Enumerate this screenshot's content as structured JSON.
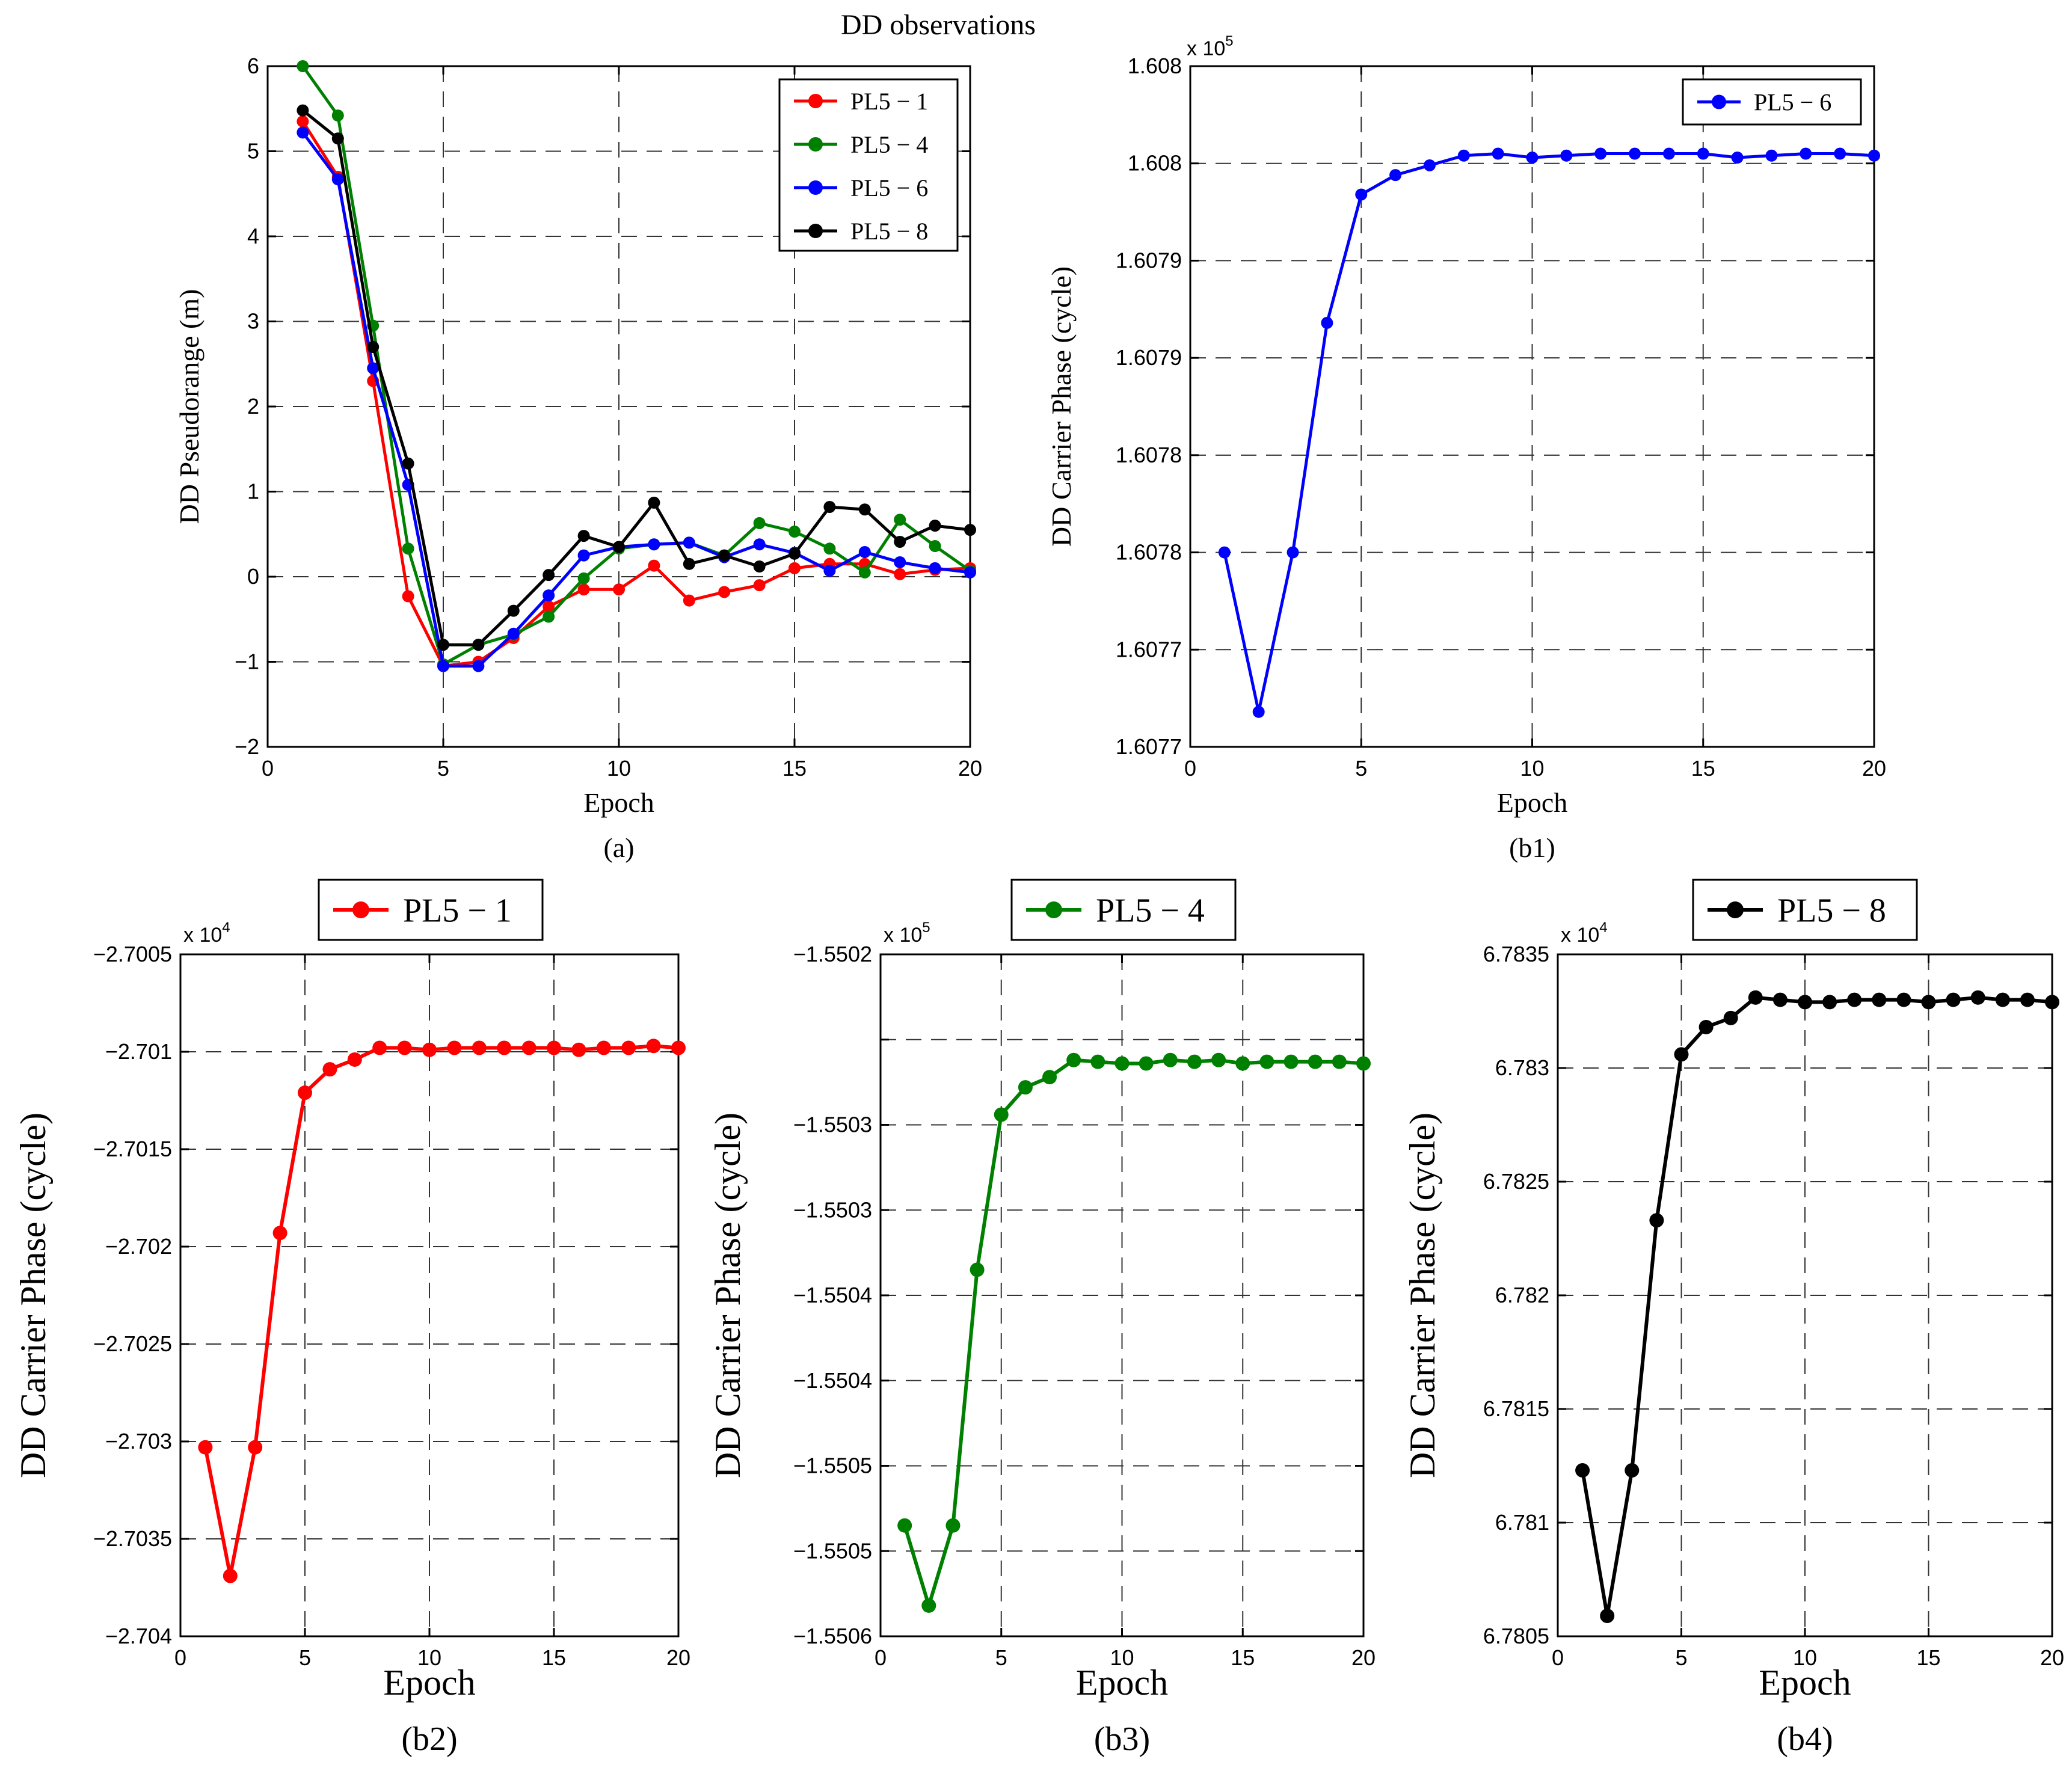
{
  "figure_title": "DD observations",
  "colors": {
    "red": "#ff0000",
    "green": "#008000",
    "blue": "#0000ff",
    "black": "#000000"
  },
  "chart_data": [
    {
      "id": "a",
      "type": "line",
      "caption": "(a)",
      "xlabel": "Epoch",
      "ylabel": "DD Pseudorange (m)",
      "xlim": [
        0,
        20
      ],
      "ylim": [
        -2,
        6
      ],
      "xticks": [
        0,
        5,
        10,
        15,
        20
      ],
      "xtick_labels": [
        "0",
        "5",
        "10",
        "15",
        "20"
      ],
      "yticks": [
        -2,
        -1,
        0,
        1,
        2,
        3,
        4,
        5,
        6
      ],
      "ytick_labels": [
        "−2",
        "−1",
        "0",
        "1",
        "2",
        "3",
        "4",
        "5",
        "6"
      ],
      "exponent": "",
      "legend_position": "top-right",
      "x": [
        1,
        2,
        3,
        4,
        5,
        6,
        7,
        8,
        9,
        10,
        11,
        12,
        13,
        14,
        15,
        16,
        17,
        18,
        19,
        20
      ],
      "series": [
        {
          "name": "PL5 − 1",
          "color": "#ff0000",
          "values": [
            5.35,
            4.7,
            2.3,
            -0.23,
            -1.05,
            -1.0,
            -0.72,
            -0.35,
            -0.15,
            -0.15,
            0.13,
            -0.28,
            -0.18,
            -0.1,
            0.1,
            0.15,
            0.15,
            0.03,
            0.08,
            0.1
          ]
        },
        {
          "name": "PL5 − 4",
          "color": "#008000",
          "values": [
            6.0,
            5.42,
            2.95,
            0.33,
            -1.03,
            -0.8,
            -0.68,
            -0.47,
            -0.02,
            0.33,
            0.38,
            0.4,
            0.25,
            0.63,
            0.53,
            0.33,
            0.05,
            0.67,
            0.36,
            0.07
          ]
        },
        {
          "name": "PL5 − 6",
          "color": "#0000ff",
          "values": [
            5.22,
            4.67,
            2.45,
            1.08,
            -1.05,
            -1.05,
            -0.67,
            -0.22,
            0.25,
            0.35,
            0.38,
            0.4,
            0.23,
            0.38,
            0.28,
            0.07,
            0.29,
            0.17,
            0.1,
            0.05
          ]
        },
        {
          "name": "PL5 − 8",
          "color": "#000000",
          "values": [
            5.48,
            5.15,
            2.7,
            1.33,
            -0.8,
            -0.8,
            -0.4,
            0.02,
            0.48,
            0.35,
            0.87,
            0.15,
            0.25,
            0.12,
            0.27,
            0.82,
            0.79,
            0.41,
            0.6,
            0.55
          ]
        }
      ]
    },
    {
      "id": "b1",
      "type": "line",
      "caption": "(b1)",
      "xlabel": "Epoch",
      "ylabel": "DD Carrier Phase (cycle)",
      "xlim": [
        0,
        20
      ],
      "ylim": [
        160770,
        160805
      ],
      "xticks": [
        0,
        5,
        10,
        15,
        20
      ],
      "xtick_labels": [
        "0",
        "5",
        "10",
        "15",
        "20"
      ],
      "yticks": [
        160770,
        160775,
        160780,
        160785,
        160790,
        160795,
        160800,
        160805
      ],
      "ytick_labels": [
        "1.6077",
        "1.6077",
        "1.6078",
        "1.6078",
        "1.6079",
        "1.6079",
        "1.608",
        "1.608"
      ],
      "exponent": "x 10",
      "exponent_power": "5",
      "legend_position": "top-right",
      "x": [
        1,
        2,
        3,
        4,
        5,
        6,
        7,
        8,
        9,
        10,
        11,
        12,
        13,
        14,
        15,
        16,
        17,
        18,
        19,
        20
      ],
      "series": [
        {
          "name": "PL5 − 6",
          "color": "#0000ff",
          "values": [
            160780.0,
            160771.8,
            160780.0,
            160791.8,
            160798.4,
            160799.4,
            160799.9,
            160800.4,
            160800.5,
            160800.3,
            160800.4,
            160800.5,
            160800.5,
            160800.5,
            160800.5,
            160800.3,
            160800.4,
            160800.5,
            160800.5,
            160800.4
          ]
        }
      ]
    },
    {
      "id": "b2",
      "type": "line",
      "caption": "(b2)",
      "xlabel": "Epoch",
      "ylabel": "DD Carrier Phase (cycle)",
      "xlim": [
        0,
        20
      ],
      "ylim": [
        -27040,
        -27005
      ],
      "xticks": [
        0,
        5,
        10,
        15,
        20
      ],
      "xtick_labels": [
        "0",
        "5",
        "10",
        "15",
        "20"
      ],
      "yticks": [
        -27040,
        -27035,
        -27030,
        -27025,
        -27020,
        -27015,
        -27010,
        -27005
      ],
      "ytick_labels": [
        "−2.704",
        "−2.7035",
        "−2.703",
        "−2.7025",
        "−2.702",
        "−2.7015",
        "−2.701",
        "−2.7005"
      ],
      "exponent": "x 10",
      "exponent_power": "4",
      "legend_position": "top-center",
      "x": [
        1,
        2,
        3,
        4,
        5,
        6,
        7,
        8,
        9,
        10,
        11,
        12,
        13,
        14,
        15,
        16,
        17,
        18,
        19,
        20
      ],
      "series": [
        {
          "name": "PL5 − 1",
          "color": "#ff0000",
          "values": [
            -27030.3,
            -27036.9,
            -27030.3,
            -27019.3,
            -27012.1,
            -27010.9,
            -27010.4,
            -27009.8,
            -27009.8,
            -27009.9,
            -27009.8,
            -27009.8,
            -27009.8,
            -27009.8,
            -27009.8,
            -27009.9,
            -27009.8,
            -27009.8,
            -27009.7,
            -27009.8
          ]
        }
      ]
    },
    {
      "id": "b3",
      "type": "line",
      "caption": "(b3)",
      "xlabel": "Epoch",
      "ylabel": "DD Carrier Phase (cycle)",
      "xlim": [
        0,
        20
      ],
      "ylim": [
        -155060,
        -155020
      ],
      "xticks": [
        0,
        5,
        10,
        15,
        20
      ],
      "xtick_labels": [
        "0",
        "5",
        "10",
        "15",
        "20"
      ],
      "yticks": [
        -155060,
        -155055,
        -155050,
        -155045,
        -155040,
        -155035,
        -155030,
        -155025,
        -155020
      ],
      "ytick_labels": [
        "−1.5506",
        "−1.5505",
        "−1.5505",
        "−1.5504",
        "−1.5504",
        "−1.5503",
        "−1.5503",
        "",
        "−1.5502"
      ],
      "exponent": "x 10",
      "exponent_power": "5",
      "legend_position": "top-center",
      "x": [
        1,
        2,
        3,
        4,
        5,
        6,
        7,
        8,
        9,
        10,
        11,
        12,
        13,
        14,
        15,
        16,
        17,
        18,
        19,
        20
      ],
      "series": [
        {
          "name": "PL5 − 4",
          "color": "#008000",
          "values": [
            -155053.5,
            -155058.2,
            -155053.5,
            -155038.5,
            -155029.4,
            -155027.8,
            -155027.2,
            -155026.2,
            -155026.3,
            -155026.4,
            -155026.4,
            -155026.2,
            -155026.3,
            -155026.2,
            -155026.4,
            -155026.3,
            -155026.3,
            -155026.3,
            -155026.3,
            -155026.4
          ]
        }
      ]
    },
    {
      "id": "b4",
      "type": "line",
      "caption": "(b4)",
      "xlabel": "Epoch",
      "ylabel": "DD Carrier Phase (cycle)",
      "xlim": [
        0,
        20
      ],
      "ylim": [
        67805,
        67835
      ],
      "xticks": [
        0,
        5,
        10,
        15,
        20
      ],
      "xtick_labels": [
        "0",
        "5",
        "10",
        "15",
        "20"
      ],
      "yticks": [
        67805,
        67810,
        67815,
        67820,
        67825,
        67830,
        67835
      ],
      "ytick_labels": [
        "6.7805",
        "6.781",
        "6.7815",
        "6.782",
        "6.7825",
        "6.783",
        "6.7835"
      ],
      "exponent": "x 10",
      "exponent_power": "4",
      "legend_position": "top-center",
      "x": [
        1,
        2,
        3,
        4,
        5,
        6,
        7,
        8,
        9,
        10,
        11,
        12,
        13,
        14,
        15,
        16,
        17,
        18,
        19,
        20
      ],
      "series": [
        {
          "name": "PL5 − 8",
          "color": "#000000",
          "values": [
            67812.3,
            67805.9,
            67812.3,
            67823.3,
            67830.6,
            67831.8,
            67832.2,
            67833.1,
            67833.0,
            67832.9,
            67832.9,
            67833.0,
            67833.0,
            67833.0,
            67832.9,
            67833.0,
            67833.1,
            67833.0,
            67833.0,
            67832.9
          ]
        }
      ]
    }
  ]
}
